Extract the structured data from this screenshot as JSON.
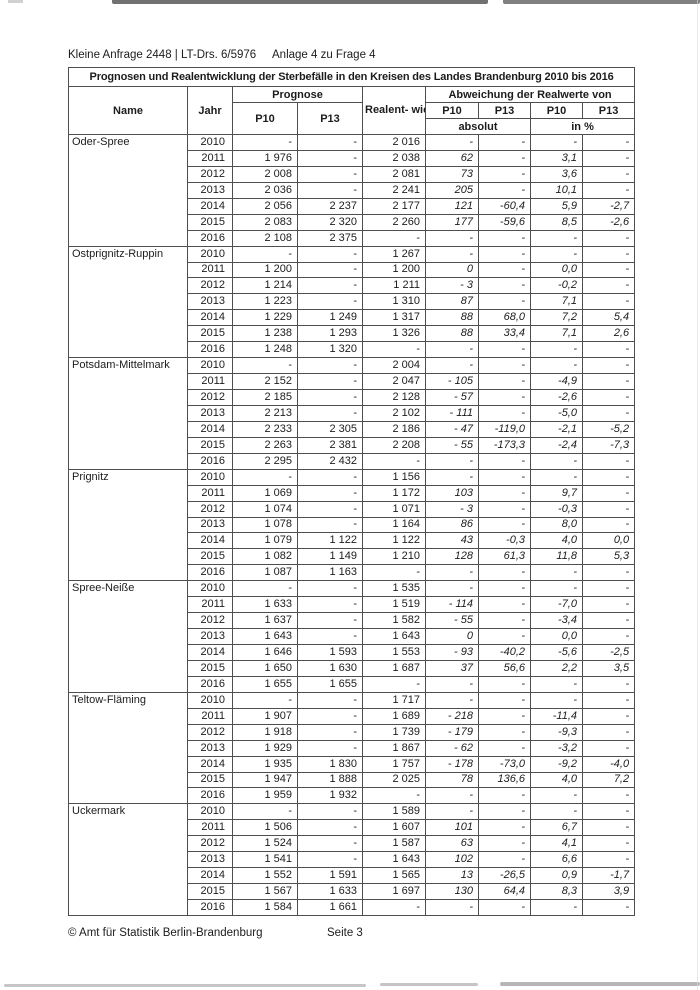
{
  "page": {
    "doc_ref": "Kleine Anfrage 2448 | LT-Drs. 6/5976",
    "annex": "Anlage 4 zu Frage 4",
    "footer_copyright": "© Amt für Statistik Berlin-Brandenburg",
    "footer_page": "Seite 3"
  },
  "table": {
    "title": "Prognosen und Realentwicklung der Sterbefälle in den Kreisen des Landes Brandenburg 2010 bis 2016",
    "headers": {
      "name": "Name",
      "jahr": "Jahr",
      "prognose": "Prognose",
      "p10": "P10",
      "p13": "P13",
      "realentwicklung": "Realent-\nwicklung",
      "abweichung": "Abweichung der Realwerte von",
      "absolut": "absolut",
      "in_percent": "in %"
    },
    "groups": [
      {
        "name": "Oder-Spree",
        "rows": [
          [
            "2010",
            "-",
            "-",
            "2 016",
            "-",
            "-",
            "-",
            "-"
          ],
          [
            "2011",
            "1 976",
            "-",
            "2 038",
            "62",
            "-",
            "3,1",
            "-"
          ],
          [
            "2012",
            "2 008",
            "-",
            "2 081",
            "73",
            "-",
            "3,6",
            "-"
          ],
          [
            "2013",
            "2 036",
            "-",
            "2 241",
            "205",
            "-",
            "10,1",
            "-"
          ],
          [
            "2014",
            "2 056",
            "2 237",
            "2 177",
            "121",
            "-60,4",
            "5,9",
            "-2,7"
          ],
          [
            "2015",
            "2 083",
            "2 320",
            "2 260",
            "177",
            "-59,6",
            "8,5",
            "-2,6"
          ],
          [
            "2016",
            "2 108",
            "2 375",
            "-",
            "-",
            "-",
            "-",
            "-"
          ]
        ]
      },
      {
        "name": "Ostprignitz-Ruppin",
        "rows": [
          [
            "2010",
            "-",
            "-",
            "1 267",
            "-",
            "-",
            "-",
            "-"
          ],
          [
            "2011",
            "1 200",
            "-",
            "1 200",
            "0",
            "-",
            "0,0",
            "-"
          ],
          [
            "2012",
            "1 214",
            "-",
            "1 211",
            "- 3",
            "-",
            "-0,2",
            "-"
          ],
          [
            "2013",
            "1 223",
            "-",
            "1 310",
            "87",
            "-",
            "7,1",
            "-"
          ],
          [
            "2014",
            "1 229",
            "1 249",
            "1 317",
            "88",
            "68,0",
            "7,2",
            "5,4"
          ],
          [
            "2015",
            "1 238",
            "1 293",
            "1 326",
            "88",
            "33,4",
            "7,1",
            "2,6"
          ],
          [
            "2016",
            "1 248",
            "1 320",
            "-",
            "-",
            "-",
            "-",
            "-"
          ]
        ]
      },
      {
        "name": "Potsdam-Mittelmark",
        "rows": [
          [
            "2010",
            "-",
            "-",
            "2 004",
            "-",
            "-",
            "-",
            "-"
          ],
          [
            "2011",
            "2 152",
            "-",
            "2 047",
            "- 105",
            "-",
            "-4,9",
            "-"
          ],
          [
            "2012",
            "2 185",
            "-",
            "2 128",
            "- 57",
            "-",
            "-2,6",
            "-"
          ],
          [
            "2013",
            "2 213",
            "-",
            "2 102",
            "- 111",
            "-",
            "-5,0",
            "-"
          ],
          [
            "2014",
            "2 233",
            "2 305",
            "2 186",
            "- 47",
            "-119,0",
            "-2,1",
            "-5,2"
          ],
          [
            "2015",
            "2 263",
            "2 381",
            "2 208",
            "- 55",
            "-173,3",
            "-2,4",
            "-7,3"
          ],
          [
            "2016",
            "2 295",
            "2 432",
            "-",
            "-",
            "-",
            "-",
            "-"
          ]
        ]
      },
      {
        "name": "Prignitz",
        "rows": [
          [
            "2010",
            "-",
            "-",
            "1 156",
            "-",
            "-",
            "-",
            "-"
          ],
          [
            "2011",
            "1 069",
            "-",
            "1 172",
            "103",
            "-",
            "9,7",
            "-"
          ],
          [
            "2012",
            "1 074",
            "-",
            "1 071",
            "- 3",
            "-",
            "-0,3",
            "-"
          ],
          [
            "2013",
            "1 078",
            "-",
            "1 164",
            "86",
            "-",
            "8,0",
            "-"
          ],
          [
            "2014",
            "1 079",
            "1 122",
            "1 122",
            "43",
            "-0,3",
            "4,0",
            "0,0"
          ],
          [
            "2015",
            "1 082",
            "1 149",
            "1 210",
            "128",
            "61,3",
            "11,8",
            "5,3"
          ],
          [
            "2016",
            "1 087",
            "1 163",
            "-",
            "-",
            "-",
            "-",
            "-"
          ]
        ]
      },
      {
        "name": "Spree-Neiße",
        "rows": [
          [
            "2010",
            "-",
            "-",
            "1 535",
            "-",
            "-",
            "-",
            "-"
          ],
          [
            "2011",
            "1 633",
            "-",
            "1 519",
            "- 114",
            "-",
            "-7,0",
            "-"
          ],
          [
            "2012",
            "1 637",
            "-",
            "1 582",
            "- 55",
            "-",
            "-3,4",
            "-"
          ],
          [
            "2013",
            "1 643",
            "-",
            "1 643",
            "0",
            "-",
            "0,0",
            "-"
          ],
          [
            "2014",
            "1 646",
            "1 593",
            "1 553",
            "- 93",
            "-40,2",
            "-5,6",
            "-2,5"
          ],
          [
            "2015",
            "1 650",
            "1 630",
            "1 687",
            "37",
            "56,6",
            "2,2",
            "3,5"
          ],
          [
            "2016",
            "1 655",
            "1 655",
            "-",
            "-",
            "-",
            "-",
            "-"
          ]
        ]
      },
      {
        "name": "Teltow-Fläming",
        "rows": [
          [
            "2010",
            "-",
            "-",
            "1 717",
            "-",
            "-",
            "-",
            "-"
          ],
          [
            "2011",
            "1 907",
            "-",
            "1 689",
            "- 218",
            "-",
            "-11,4",
            "-"
          ],
          [
            "2012",
            "1 918",
            "-",
            "1 739",
            "- 179",
            "-",
            "-9,3",
            "-"
          ],
          [
            "2013",
            "1 929",
            "-",
            "1 867",
            "- 62",
            "-",
            "-3,2",
            "-"
          ],
          [
            "2014",
            "1 935",
            "1 830",
            "1 757",
            "- 178",
            "-73,0",
            "-9,2",
            "-4,0"
          ],
          [
            "2015",
            "1 947",
            "1 888",
            "2 025",
            "78",
            "136,6",
            "4,0",
            "7,2"
          ],
          [
            "2016",
            "1 959",
            "1 932",
            "-",
            "-",
            "-",
            "-",
            "-"
          ]
        ]
      },
      {
        "name": "Uckermark",
        "rows": [
          [
            "2010",
            "-",
            "-",
            "1 589",
            "-",
            "-",
            "-",
            "-"
          ],
          [
            "2011",
            "1 506",
            "-",
            "1 607",
            "101",
            "-",
            "6,7",
            "-"
          ],
          [
            "2012",
            "1 524",
            "-",
            "1 587",
            "63",
            "-",
            "4,1",
            "-"
          ],
          [
            "2013",
            "1 541",
            "-",
            "1 643",
            "102",
            "-",
            "6,6",
            "-"
          ],
          [
            "2014",
            "1 552",
            "1 591",
            "1 565",
            "13",
            "-26,5",
            "0,9",
            "-1,7"
          ],
          [
            "2015",
            "1 567",
            "1 633",
            "1 697",
            "130",
            "64,4",
            "8,3",
            "3,9"
          ],
          [
            "2016",
            "1 584",
            "1 661",
            "-",
            "-",
            "-",
            "-",
            "-"
          ]
        ]
      }
    ]
  }
}
